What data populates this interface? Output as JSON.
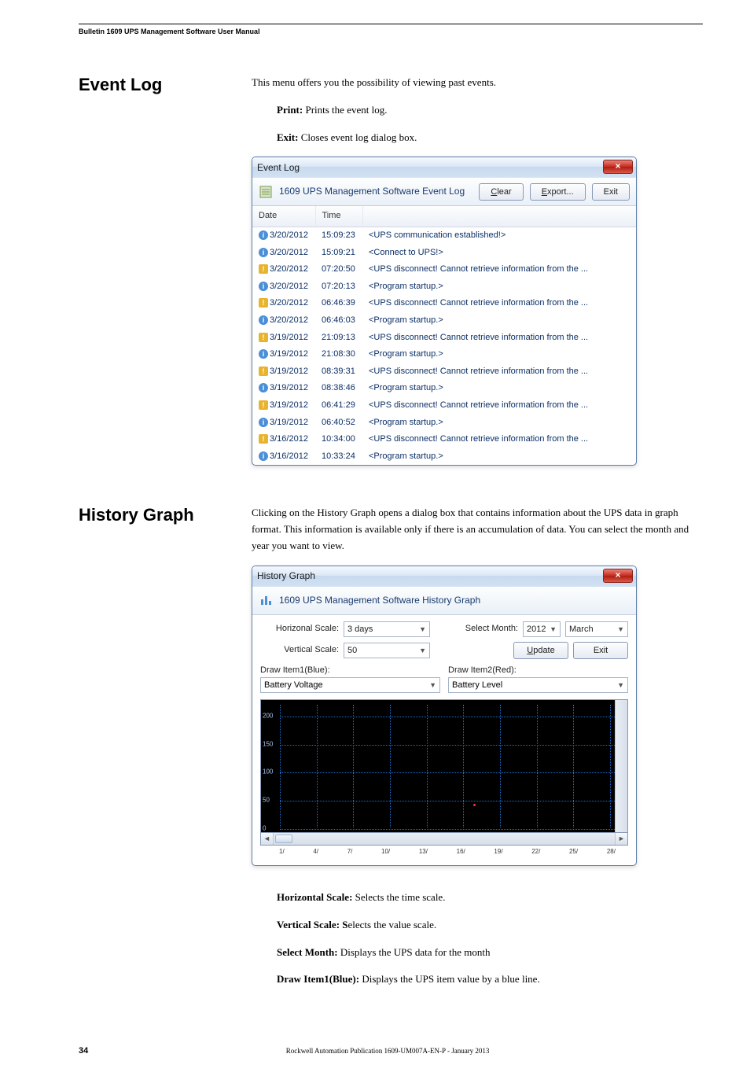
{
  "header": {
    "title": "Bulletin 1609 UPS Management Software User Manual"
  },
  "event_log": {
    "section_title": "Event Log",
    "intro": "This menu offers you the possibility of viewing past events.",
    "print_label": "Print:",
    "print_text": " Prints the event log.",
    "exit_label": "Exit:",
    "exit_text": " Closes event log dialog box.",
    "window": {
      "title": "Event Log",
      "toolbar_title": "1609 UPS Management Software Event Log",
      "btn_clear": "Clear",
      "btn_export": "Export...",
      "btn_exit": "Exit",
      "columns": {
        "date": "Date",
        "time": "Time"
      },
      "rows": [
        {
          "icon": "info",
          "date": "3/20/2012",
          "time": "15:09:23",
          "msg": "<UPS communication established!>"
        },
        {
          "icon": "info",
          "date": "3/20/2012",
          "time": "15:09:21",
          "msg": "<Connect to UPS!>"
        },
        {
          "icon": "warn",
          "date": "3/20/2012",
          "time": "07:20:50",
          "msg": "<UPS disconnect! Cannot retrieve information from the ..."
        },
        {
          "icon": "info",
          "date": "3/20/2012",
          "time": "07:20:13",
          "msg": "<Program startup.>"
        },
        {
          "icon": "warn",
          "date": "3/20/2012",
          "time": "06:46:39",
          "msg": "<UPS disconnect! Cannot retrieve information from the ..."
        },
        {
          "icon": "info",
          "date": "3/20/2012",
          "time": "06:46:03",
          "msg": "<Program startup.>"
        },
        {
          "icon": "warn",
          "date": "3/19/2012",
          "time": "21:09:13",
          "msg": "<UPS disconnect! Cannot retrieve information from the ..."
        },
        {
          "icon": "info",
          "date": "3/19/2012",
          "time": "21:08:30",
          "msg": "<Program startup.>"
        },
        {
          "icon": "warn",
          "date": "3/19/2012",
          "time": "08:39:31",
          "msg": "<UPS disconnect! Cannot retrieve information from the ..."
        },
        {
          "icon": "info",
          "date": "3/19/2012",
          "time": "08:38:46",
          "msg": "<Program startup.>"
        },
        {
          "icon": "warn",
          "date": "3/19/2012",
          "time": "06:41:29",
          "msg": "<UPS disconnect! Cannot retrieve information from the ..."
        },
        {
          "icon": "info",
          "date": "3/19/2012",
          "time": "06:40:52",
          "msg": "<Program startup.>"
        },
        {
          "icon": "warn",
          "date": "3/16/2012",
          "time": "10:34:00",
          "msg": "<UPS disconnect! Cannot retrieve information from the ..."
        },
        {
          "icon": "info",
          "date": "3/16/2012",
          "time": "10:33:24",
          "msg": "<Program startup.>"
        }
      ]
    }
  },
  "history_graph": {
    "section_title": "History Graph",
    "intro": "Clicking on the History Graph opens a dialog box that contains information about the UPS data in graph format. This information is available only if there is an accumulation of data. You can select the month and year you want to view.",
    "window": {
      "title": "History Graph",
      "toolbar_title": "1609 UPS Management Software History Graph",
      "labels": {
        "horiz": "Horizonal Scale:",
        "vert": "Vertical Scale:",
        "select_month": "Select Month:",
        "update": "Update",
        "exit": "Exit",
        "draw1": "Draw Item1(Blue):",
        "draw2": "Draw Item2(Red):"
      },
      "values": {
        "horiz": "3 days",
        "vert": "50",
        "year": "2012",
        "month": "March",
        "item1": "Battery Voltage",
        "item2": "Battery Level"
      },
      "y_ticks": [
        0,
        50,
        100,
        150,
        200
      ],
      "y_max": 220,
      "grid_color": "#1b6fd4",
      "bg_color": "#000000",
      "x_ticks": [
        "1/",
        "4/",
        "7/",
        "10/",
        "13/",
        "16/",
        "19/",
        "22/",
        "25/",
        "28/"
      ]
    },
    "descriptions": [
      {
        "label": "Horizontal Scale:",
        "text": " Selects the time scale."
      },
      {
        "label": "Vertical Scale: S",
        "text": "elects the value scale."
      },
      {
        "label": "Select Month:",
        "text": " Displays the UPS data for the month"
      },
      {
        "label": "Draw Item1(Blue):",
        "text": " Displays the UPS item value by a blue line."
      }
    ]
  },
  "footer": {
    "page": "34",
    "pub": "Rockwell Automation Publication 1609-UM007A-EN-P - January 2013"
  }
}
